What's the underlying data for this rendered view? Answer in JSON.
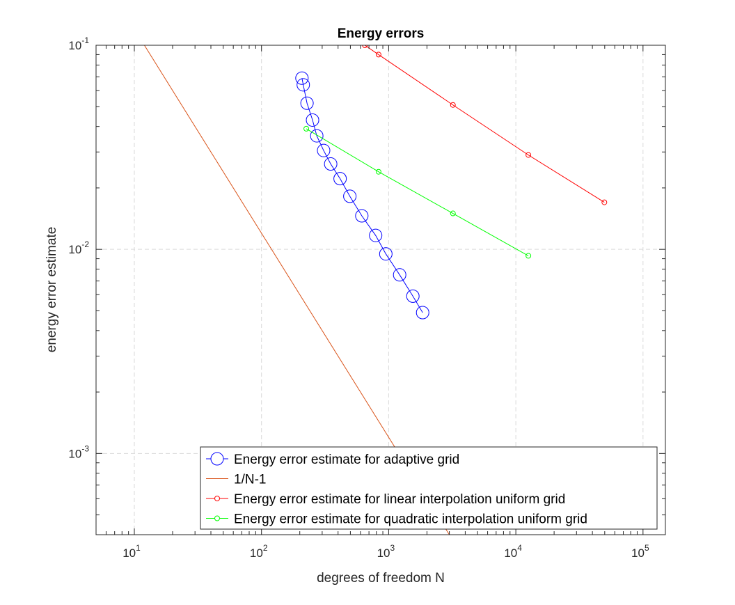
{
  "chart_data": {
    "type": "line",
    "title": "Energy errors",
    "xlabel": "degrees of freedom N",
    "ylabel": "energy error estimate",
    "xscale": "log",
    "yscale": "log",
    "xlim": [
      5,
      150000
    ],
    "ylim": [
      0.0004,
      0.1
    ],
    "grid": true,
    "legend_location": "bottom-right",
    "x_ticks": [
      {
        "value": 10,
        "base": "10",
        "exp": "1"
      },
      {
        "value": 100,
        "base": "10",
        "exp": "2"
      },
      {
        "value": 1000,
        "base": "10",
        "exp": "3"
      },
      {
        "value": 10000,
        "base": "10",
        "exp": "4"
      },
      {
        "value": 100000,
        "base": "10",
        "exp": "5"
      }
    ],
    "y_ticks": [
      {
        "value": 0.001,
        "base": "10",
        "exp": "-3"
      },
      {
        "value": 0.01,
        "base": "10",
        "exp": "-2"
      },
      {
        "value": 0.1,
        "base": "10",
        "exp": "-1"
      }
    ],
    "series": [
      {
        "name": "Energy error estimate for adaptive grid",
        "color": "#0000ff",
        "marker": "circle-large",
        "x": [
          208,
          213,
          228,
          252,
          272,
          308,
          350,
          415,
          495,
          615,
          790,
          950,
          1220,
          1550,
          1850
        ],
        "y": [
          0.069,
          0.064,
          0.052,
          0.043,
          0.036,
          0.0305,
          0.0262,
          0.0222,
          0.0182,
          0.0146,
          0.0117,
          0.0095,
          0.0075,
          0.0059,
          0.0049
        ]
      },
      {
        "name": "1/N-1",
        "color": "#d95319",
        "marker": "none",
        "x": [
          12,
          3000
        ],
        "y": [
          0.1,
          0.0004
        ]
      },
      {
        "name": "Energy error estimate for linear interpolation uniform grid",
        "color": "#ff0000",
        "marker": "circle-small",
        "x": [
          650,
          833,
          3201,
          12545,
          49665
        ],
        "y": [
          0.1,
          0.09,
          0.051,
          0.029,
          0.017
        ]
      },
      {
        "name": "Energy error estimate for quadratic interpolation uniform grid",
        "color": "#00ff00",
        "marker": "circle-small",
        "x": [
          225,
          833,
          3201,
          12545
        ],
        "y": [
          0.039,
          0.024,
          0.015,
          0.0093
        ]
      }
    ]
  }
}
